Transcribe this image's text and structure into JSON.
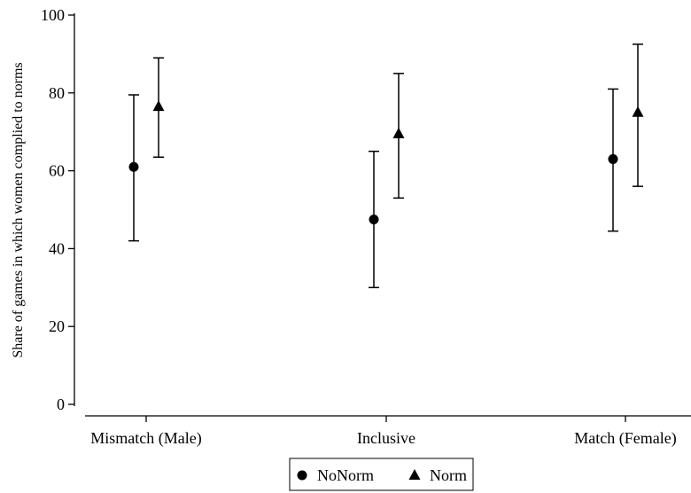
{
  "chart_data": {
    "type": "scatter",
    "title": "",
    "xlabel": "",
    "ylabel": "Share of games in which women complied to norms",
    "ylim": [
      0,
      100
    ],
    "yticks": [
      0,
      20,
      40,
      60,
      80,
      100
    ],
    "categories": [
      "Mismatch (Male)",
      "Inclusive",
      "Match (Female)"
    ],
    "grid": false,
    "legend_position": "bottom",
    "series": [
      {
        "name": "NoNorm",
        "marker": "circle",
        "color": "#000000",
        "values": [
          61,
          47.5,
          63
        ],
        "ci_low": [
          42,
          30,
          44.5
        ],
        "ci_high": [
          79.5,
          65,
          81
        ]
      },
      {
        "name": "Norm",
        "marker": "triangle",
        "color": "#000000",
        "values": [
          76.5,
          69.5,
          75
        ],
        "ci_low": [
          63.5,
          53,
          56
        ],
        "ci_high": [
          89,
          85,
          92.5
        ]
      }
    ]
  }
}
